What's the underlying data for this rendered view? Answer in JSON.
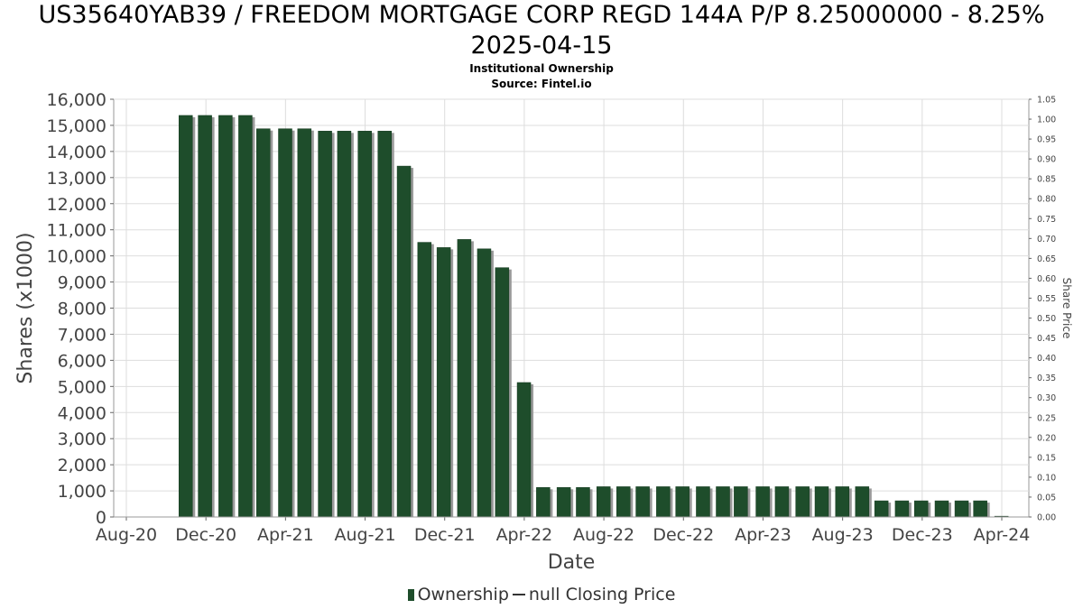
{
  "title_line1": "US35640YAB39 / FREEDOM MORTGAGE CORP REGD 144A P/P 8.25000000 - 8.25%",
  "title_line2": "2025-04-15",
  "subtitle": "Institutional Ownership",
  "source": "Source: Fintel.io",
  "legend": {
    "ownership": "Ownership",
    "price": "null Closing Price"
  },
  "colors": {
    "bar": "#1e4d2b",
    "bar_shadow": "#9a9a9a",
    "grid": "#dddddd"
  },
  "chart_data": {
    "type": "bar",
    "xlabel": "Date",
    "ylabel": "Shares (x1000)",
    "y2label": "Share Price",
    "ylim": [
      0,
      16000
    ],
    "y2lim": [
      0,
      1.05
    ],
    "grid": true,
    "legend_position": "bottom",
    "x_ticks": [
      "Aug-20",
      "Dec-20",
      "Apr-21",
      "Aug-21",
      "Dec-21",
      "Apr-22",
      "Aug-22",
      "Dec-22",
      "Apr-23",
      "Aug-23",
      "Dec-23",
      "Apr-24"
    ],
    "y_ticks": [
      "0",
      "1,000",
      "2,000",
      "3,000",
      "4,000",
      "5,000",
      "6,000",
      "7,000",
      "8,000",
      "9,000",
      "10,000",
      "11,000",
      "12,000",
      "13,000",
      "14,000",
      "15,000",
      "16,000"
    ],
    "y2_ticks": [
      "0.00",
      "0.05",
      "0.10",
      "0.15",
      "0.20",
      "0.25",
      "0.30",
      "0.35",
      "0.40",
      "0.45",
      "0.50",
      "0.55",
      "0.60",
      "0.65",
      "0.70",
      "0.75",
      "0.80",
      "0.85",
      "0.90",
      "0.95",
      "1.00",
      "1.05"
    ],
    "series": [
      {
        "name": "Ownership",
        "x": [
          "2020-10-31",
          "2020-11-30",
          "2020-12-31",
          "2021-01-31",
          "2021-02-28",
          "2021-03-31",
          "2021-04-30",
          "2021-05-31",
          "2021-06-30",
          "2021-07-31",
          "2021-08-31",
          "2021-09-30",
          "2021-10-31",
          "2021-11-30",
          "2021-12-31",
          "2022-01-31",
          "2022-02-28",
          "2022-03-31",
          "2022-04-30",
          "2022-05-31",
          "2022-06-30",
          "2022-07-31",
          "2022-08-31",
          "2022-09-30",
          "2022-10-31",
          "2022-11-30",
          "2022-12-31",
          "2023-01-31",
          "2023-02-28",
          "2023-03-31",
          "2023-04-30",
          "2023-05-31",
          "2023-06-30",
          "2023-07-31",
          "2023-08-31",
          "2023-09-30",
          "2023-10-31",
          "2023-11-30",
          "2023-12-31",
          "2024-01-31",
          "2024-02-29",
          "2024-03-31"
        ],
        "values": [
          15380,
          15380,
          15380,
          15380,
          14870,
          14870,
          14870,
          14780,
          14780,
          14780,
          14780,
          13440,
          10520,
          10320,
          10630,
          10270,
          9550,
          5150,
          1130,
          1130,
          1130,
          1160,
          1160,
          1160,
          1160,
          1160,
          1160,
          1160,
          1160,
          1160,
          1160,
          1160,
          1160,
          1160,
          1160,
          620,
          620,
          620,
          620,
          620,
          620,
          30
        ]
      }
    ]
  }
}
